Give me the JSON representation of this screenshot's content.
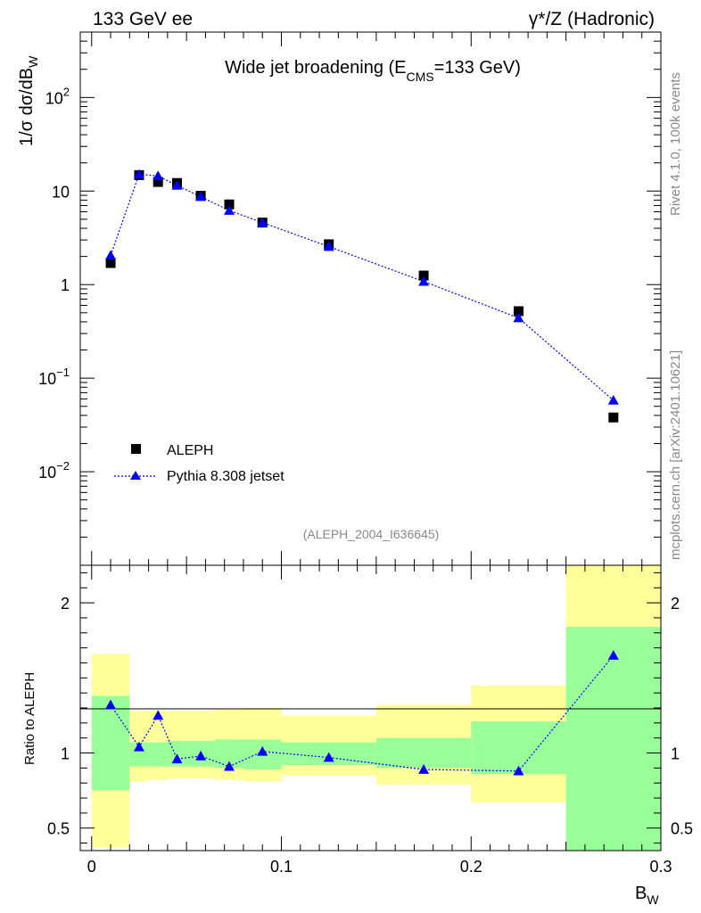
{
  "header": {
    "left": "133 GeV ee",
    "right": "γ*/Z (Hadronic)"
  },
  "side_text": {
    "top": "Rivet 4.1.0,  100k events",
    "bottom": "mcplots.cern.ch [arXiv:2401.10621]"
  },
  "chart_data": {
    "type": "scatter",
    "title_parts": {
      "pre": "Wide jet broadening (E",
      "sub": "CMS",
      "post": "=133 GeV)"
    },
    "ylabel_parts": {
      "pre": "1/σ  dσ/dB",
      "sub": "W"
    },
    "xlabel_parts": {
      "pre": "B",
      "sub": "W"
    },
    "ratio_ylabel": "Ratio to ALEPH",
    "analysis_label": "(ALEPH_2004_I636645)",
    "xlim": [
      -0.006,
      0.3
    ],
    "ylim_main": [
      0.001,
      500
    ],
    "ylim_ratio": [
      0.35,
      2.25
    ],
    "x_ticks": [
      {
        "value": 0,
        "label": "0"
      },
      {
        "value": 0.1,
        "label": "0.1"
      },
      {
        "value": 0.2,
        "label": "0.2"
      },
      {
        "value": 0.3,
        "label": "0.3"
      }
    ],
    "y_ticks_main": [
      {
        "value": 0.01,
        "base": "10",
        "exp": "−2"
      },
      {
        "value": 0.1,
        "base": "10",
        "exp": "−1"
      },
      {
        "value": 1,
        "base": "1",
        "exp": ""
      },
      {
        "value": 10,
        "base": "10",
        "exp": ""
      },
      {
        "value": 100,
        "base": "10",
        "exp": "2"
      }
    ],
    "y_ticks_ratio": [
      {
        "value": 0.5,
        "label": "0.5"
      },
      {
        "value": 1,
        "label": "1"
      },
      {
        "value": 2,
        "label": "2"
      }
    ],
    "bins": [
      {
        "x": 0.01,
        "lo": 0.0,
        "hi": 0.02,
        "data": 1.7,
        "mc": 2.05,
        "ratio": 1.32,
        "band_green": [
          0.75,
          1.38
        ],
        "band_yellow": [
          0.37,
          1.66
        ]
      },
      {
        "x": 0.025,
        "lo": 0.02,
        "hi": 0.03,
        "data": 14.8,
        "mc": 15.1,
        "ratio": 1.04,
        "band_green": [
          0.91,
          1.07
        ],
        "band_yellow": [
          0.81,
          1.28
        ]
      },
      {
        "x": 0.035,
        "lo": 0.03,
        "hi": 0.04,
        "data": 12.5,
        "mc": 14.5,
        "ratio": 1.25,
        "band_green": [
          0.91,
          1.07
        ],
        "band_yellow": [
          0.82,
          1.28
        ]
      },
      {
        "x": 0.045,
        "lo": 0.04,
        "hi": 0.05,
        "data": 12.2,
        "mc": 11.5,
        "ratio": 0.96,
        "band_green": [
          0.91,
          1.08
        ],
        "band_yellow": [
          0.83,
          1.28
        ]
      },
      {
        "x": 0.0575,
        "lo": 0.05,
        "hi": 0.065,
        "data": 8.9,
        "mc": 8.7,
        "ratio": 0.98,
        "band_green": [
          0.91,
          1.08
        ],
        "band_yellow": [
          0.83,
          1.28
        ]
      },
      {
        "x": 0.0725,
        "lo": 0.065,
        "hi": 0.08,
        "data": 7.2,
        "mc": 6.2,
        "ratio": 0.91,
        "band_green": [
          0.9,
          1.09
        ],
        "band_yellow": [
          0.82,
          1.29
        ]
      },
      {
        "x": 0.09,
        "lo": 0.08,
        "hi": 0.1,
        "data": 4.6,
        "mc": 4.6,
        "ratio": 1.01,
        "band_green": [
          0.89,
          1.09
        ],
        "band_yellow": [
          0.81,
          1.3
        ]
      },
      {
        "x": 0.125,
        "lo": 0.1,
        "hi": 0.15,
        "data": 2.7,
        "mc": 2.55,
        "ratio": 0.97,
        "band_green": [
          0.92,
          1.07
        ],
        "band_yellow": [
          0.85,
          1.25
        ]
      },
      {
        "x": 0.175,
        "lo": 0.15,
        "hi": 0.2,
        "data": 1.25,
        "mc": 1.08,
        "ratio": 0.89,
        "band_green": [
          0.9,
          1.1
        ],
        "band_yellow": [
          0.79,
          1.32
        ]
      },
      {
        "x": 0.225,
        "lo": 0.2,
        "hi": 0.25,
        "data": 0.52,
        "mc": 0.44,
        "ratio": 0.88,
        "band_green": [
          0.86,
          1.21
        ],
        "band_yellow": [
          0.67,
          1.45
        ]
      },
      {
        "x": 0.275,
        "lo": 0.25,
        "hi": 0.3,
        "data": 0.038,
        "mc": 0.058,
        "ratio": 1.65,
        "band_green": [
          0.3,
          1.84
        ],
        "band_yellow": [
          0.3,
          2.4
        ]
      }
    ],
    "legend": [
      {
        "name": "ALEPH",
        "marker": "square",
        "color": "#000000"
      },
      {
        "name": "Pythia 8.308 jetset",
        "marker": "triangle",
        "color": "#0000ff"
      }
    ],
    "colors": {
      "green": "#99ff99",
      "yellow": "#ffff99",
      "mc": "#0000ff",
      "data": "#000000",
      "grey_text": "#888888"
    }
  }
}
